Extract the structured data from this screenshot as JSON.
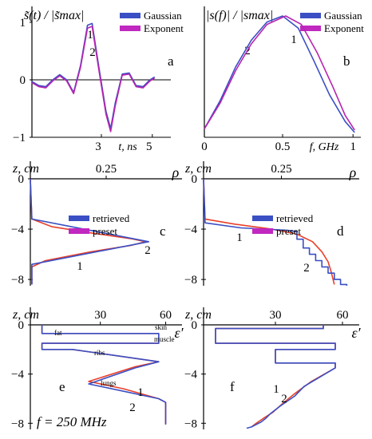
{
  "colors": {
    "retrieved": "#3a4fc4",
    "preset": "#e8402a",
    "gaussian": "#3a4fc4",
    "exponent": "#b824b0",
    "legend_pink": "#c028c0"
  },
  "chart_data": [
    {
      "id": "a",
      "type": "line",
      "letter": "a",
      "ylabel": "s̃(t) / |s̃max|",
      "xlabel": "t, ns",
      "xlim": [
        0,
        6
      ],
      "ylim": [
        -1,
        1
      ],
      "xticks": [
        "3",
        "5"
      ],
      "yticks": [
        "1",
        "0",
        "−1"
      ],
      "legend": [
        "Gaussian",
        "Exponent"
      ],
      "curve_labels": [
        "1",
        "2"
      ],
      "series": [
        {
          "name": "Gaussian",
          "x": [
            0,
            0.3,
            0.6,
            0.9,
            1.2,
            1.5,
            1.8,
            2.1,
            2.4,
            2.6,
            2.9,
            3.2,
            3.4,
            3.6,
            3.9,
            4.2,
            4.5,
            4.8,
            5.1,
            5.3
          ],
          "y": [
            -0.03,
            -0.1,
            -0.12,
            0,
            0.09,
            0,
            -0.22,
            0.25,
            0.95,
            0.98,
            0.2,
            -0.55,
            -0.85,
            -0.4,
            0.1,
            0.12,
            -0.1,
            -0.12,
            0,
            0.05
          ]
        },
        {
          "name": "Exponent",
          "x": [
            0,
            0.3,
            0.6,
            0.9,
            1.2,
            1.5,
            1.8,
            2.1,
            2.4,
            2.6,
            2.9,
            3.2,
            3.4,
            3.6,
            3.9,
            4.2,
            4.5,
            4.8,
            5.1,
            5.3
          ],
          "y": [
            -0.05,
            -0.12,
            -0.14,
            -0.02,
            0.07,
            -0.02,
            -0.24,
            0.22,
            0.9,
            0.93,
            0.15,
            -0.6,
            -0.9,
            -0.45,
            0.08,
            0.1,
            -0.12,
            -0.14,
            -0.02,
            0.03
          ]
        }
      ]
    },
    {
      "id": "b",
      "type": "line",
      "letter": "b",
      "ylabel": "|s(f)| / |smax|",
      "xlabel": "f, GHz",
      "xlim": [
        0,
        1
      ],
      "ylim": [
        0,
        1
      ],
      "xticks": [
        "0",
        "0.5",
        "1"
      ],
      "legend": [
        "Gaussian",
        "Exponent"
      ],
      "curve_labels": [
        "2",
        "1"
      ],
      "series": [
        {
          "name": "Gaussian",
          "x": [
            0,
            0.1,
            0.2,
            0.3,
            0.4,
            0.5,
            0.6,
            0.7,
            0.8,
            0.9,
            0.96
          ],
          "y": [
            0.07,
            0.3,
            0.58,
            0.8,
            0.95,
            1.0,
            0.9,
            0.63,
            0.35,
            0.13,
            0.04
          ]
        },
        {
          "name": "Exponent",
          "x": [
            0,
            0.1,
            0.2,
            0.3,
            0.4,
            0.52,
            0.62,
            0.72,
            0.82,
            0.9,
            0.96
          ],
          "y": [
            0.07,
            0.28,
            0.55,
            0.77,
            0.93,
            1.0,
            0.93,
            0.7,
            0.42,
            0.18,
            0.06
          ]
        }
      ]
    },
    {
      "id": "c",
      "type": "line",
      "letter": "c",
      "ylabel": "z, cm",
      "xlabel": "ρ",
      "xlim": [
        0,
        0.5
      ],
      "ylim": [
        -8.5,
        0
      ],
      "xticks": [
        "0.25"
      ],
      "yticks": [
        "0",
        "−4",
        "−8"
      ],
      "legend": [
        "retrieved",
        "preset"
      ],
      "curve_labels": [
        "2",
        "1"
      ],
      "series": [
        {
          "name": "retrieved",
          "x": [
            0,
            0.005,
            0.39,
            0.005,
            0.005
          ],
          "y": [
            0,
            -3.2,
            -5.0,
            -6.8,
            -8.4
          ]
        },
        {
          "name": "preset",
          "x": [
            0,
            0.005,
            0.07,
            0.2,
            0.33,
            0.38,
            0.33,
            0.2,
            0.05,
            0.005,
            0.005
          ],
          "y": [
            0,
            -3.2,
            -3.8,
            -4.3,
            -4.75,
            -5.0,
            -5.3,
            -5.8,
            -6.5,
            -7,
            -8.4
          ]
        }
      ]
    },
    {
      "id": "d",
      "type": "line",
      "letter": "d",
      "ylabel": "z, cm",
      "xlabel": "ρ",
      "xlim": [
        0,
        0.5
      ],
      "ylim": [
        -8.5,
        0
      ],
      "xticks": [
        "0.25"
      ],
      "yticks": [
        "0",
        "−4",
        "−8"
      ],
      "legend": [
        "retrieved",
        "preset"
      ],
      "curve_labels": [
        "1",
        "2"
      ],
      "series": [
        {
          "name": "retrieved",
          "x": [
            0,
            0.005,
            0.12,
            0.27,
            0.3,
            0.3,
            0.32,
            0.32,
            0.34,
            0.34,
            0.36,
            0.36,
            0.38,
            0.38,
            0.4,
            0.4,
            0.42,
            0.42,
            0.44,
            0.44,
            0.46,
            0.46
          ],
          "y": [
            0,
            -3.5,
            -3.9,
            -4.1,
            -4.2,
            -4.8,
            -4.8,
            -5.5,
            -5.5,
            -6,
            -6,
            -6.5,
            -6.5,
            -7,
            -7,
            -7.5,
            -7.5,
            -8,
            -8,
            -8.4,
            -8.4,
            -8.5
          ]
        },
        {
          "name": "preset",
          "x": [
            0,
            0.005,
            0.1,
            0.22,
            0.3,
            0.35,
            0.38,
            0.4,
            0.41,
            0.42
          ],
          "y": [
            0,
            -3.2,
            -3.6,
            -4.0,
            -4.4,
            -5.0,
            -5.8,
            -6.6,
            -7.4,
            -8.4
          ]
        }
      ]
    },
    {
      "id": "e",
      "type": "line",
      "letter": "e",
      "ylabel": "z, cm",
      "xlabel": "ε′",
      "xlim": [
        0,
        65
      ],
      "ylim": [
        -8.5,
        0
      ],
      "xticks": [
        "30",
        "60"
      ],
      "yticks": [
        "0",
        "−4",
        "−8"
      ],
      "annotations": [
        "skin",
        "fat",
        "muscle",
        "ribs",
        "lungs"
      ],
      "curve_labels": [
        "1",
        "2"
      ],
      "footer": "f = 250 MHz",
      "series": [
        {
          "name": "retrieved",
          "x": [
            5,
            5,
            55,
            55,
            5,
            5,
            18,
            55,
            45,
            25,
            40,
            55,
            58,
            58
          ],
          "y": [
            0,
            -0.7,
            -0.7,
            -1.5,
            -1.5,
            -2.0,
            -2.0,
            -3.0,
            -3.5,
            -4.8,
            -5.4,
            -6.0,
            -6.3,
            -8.1
          ]
        },
        {
          "name": "preset",
          "x": [
            5,
            5,
            55,
            55,
            5,
            5,
            18,
            55,
            45,
            25,
            40,
            55,
            58,
            58
          ],
          "y": [
            0,
            -0.7,
            -0.7,
            -1.5,
            -1.5,
            -2.0,
            -2.0,
            -3.0,
            -3.4,
            -4.6,
            -5.2,
            -6.0,
            -6.3,
            -8.1
          ]
        }
      ]
    },
    {
      "id": "f",
      "type": "line",
      "letter": "f",
      "ylabel": "z, cm",
      "xlabel": "ε′",
      "xlim": [
        0,
        65
      ],
      "ylim": [
        -8.5,
        0
      ],
      "xticks": [
        "30",
        "60"
      ],
      "yticks": [
        "0",
        "−4",
        "−8"
      ],
      "curve_labels": [
        "1",
        "2"
      ],
      "series": [
        {
          "name": "retrieved",
          "x": [
            50,
            50,
            5,
            5,
            55,
            55,
            30,
            30,
            55,
            55,
            42,
            38,
            32,
            28,
            26,
            24,
            22,
            20,
            18
          ],
          "y": [
            0,
            -0.3,
            -0.3,
            -1.5,
            -1.5,
            -2.0,
            -2.0,
            -3.1,
            -3.1,
            -3.5,
            -5,
            -5.8,
            -6.6,
            -7.2,
            -7.6,
            -7.9,
            -8.1,
            -8.3,
            -8.4
          ]
        },
        {
          "name": "preset",
          "x": [
            50,
            50,
            5,
            5,
            55,
            55,
            30,
            30,
            55,
            55,
            45,
            38,
            33,
            29,
            25,
            22,
            20
          ],
          "y": [
            0,
            -0.3,
            -0.3,
            -1.5,
            -1.5,
            -2.0,
            -2.0,
            -3.1,
            -3.1,
            -3.5,
            -4.6,
            -5.6,
            -6.4,
            -7.1,
            -7.6,
            -8.0,
            -8.3
          ]
        }
      ]
    }
  ]
}
